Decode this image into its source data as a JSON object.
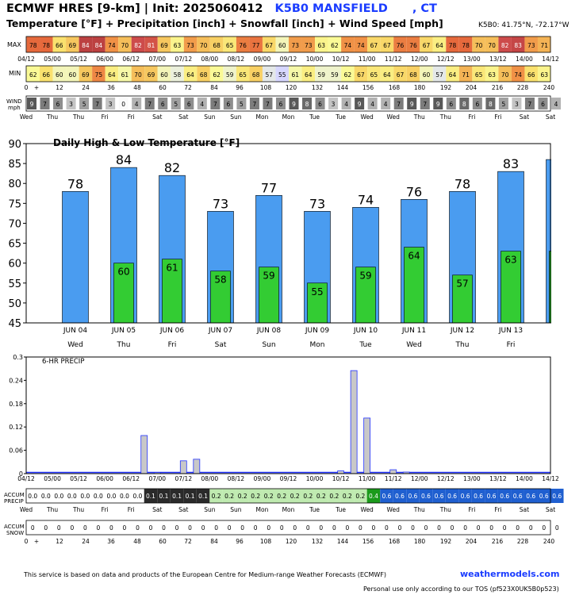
{
  "header": {
    "title_prefix": "ECMWF HRES [9-km] | Init: 2025060412",
    "station": "K5B0 MANSFIELD",
    "state": ", CT",
    "subtitle": "Temperature [°F] + Precipitation [inch] + Snowfall [inch] + Wind Speed [mph]",
    "coords": "K5B0: 41.75°N, -72.17°W"
  },
  "strip_labels": {
    "max": "MAX",
    "min": "MIN",
    "wind": "WIND",
    "wind_unit": "mph",
    "accum_precip_1": "ACCUM",
    "accum_precip_2": "PRECIP",
    "accum_snow_1": "ACCUM",
    "accum_snow_2": "SNOW"
  },
  "time_axis_top": [
    "04/12",
    "05/00",
    "05/12",
    "06/00",
    "06/12",
    "07/00",
    "07/12",
    "08/00",
    "08/12",
    "09/00",
    "09/12",
    "10/00",
    "10/12",
    "11/00",
    "11/12",
    "12/00",
    "12/12",
    "13/00",
    "13/12",
    "14/00",
    "14/12"
  ],
  "hour_axis": [
    "0",
    "+",
    "12",
    "24",
    "36",
    "48",
    "60",
    "72",
    "84",
    "96",
    "108",
    "120",
    "132",
    "144",
    "156",
    "168",
    "180",
    "192",
    "204",
    "216",
    "228",
    "240"
  ],
  "day_axis": [
    "Wed",
    "Thu",
    "Thu",
    "Fri",
    "Fri",
    "Sat",
    "Sat",
    "Sun",
    "Sun",
    "Mon",
    "Mon",
    "Tue",
    "Tue",
    "Wed",
    "Wed",
    "Thu",
    "Thu",
    "Fri",
    "Fri",
    "Sat",
    "Sat"
  ],
  "max_temps": [
    78,
    78,
    66,
    69,
    84,
    84,
    74,
    70,
    82,
    81,
    69,
    63,
    73,
    70,
    68,
    65,
    76,
    77,
    67,
    60,
    73,
    73,
    63,
    62,
    74,
    74,
    67,
    67,
    76,
    76,
    67,
    64,
    78,
    78,
    70,
    70,
    82,
    83,
    73,
    71
  ],
  "min_temps": [
    62,
    66,
    60,
    60,
    69,
    75,
    64,
    61,
    70,
    69,
    60,
    58,
    64,
    68,
    62,
    59,
    65,
    68,
    57,
    55,
    61,
    64,
    59,
    59,
    62,
    67,
    65,
    64,
    67,
    68,
    60,
    57,
    64,
    71,
    65,
    63,
    70,
    74,
    66,
    63
  ],
  "wind": [
    9,
    7,
    6,
    3,
    5,
    7,
    3,
    0,
    4,
    7,
    6,
    5,
    6,
    4,
    7,
    6,
    5,
    7,
    7,
    6,
    9,
    8,
    6,
    3,
    4,
    9,
    4,
    4,
    7,
    9,
    7,
    9,
    6,
    8,
    6,
    8,
    5,
    3,
    7,
    6,
    4
  ],
  "accum_precip": [
    "0.0",
    "0.0",
    "0.0",
    "0.0",
    "0.0",
    "0.0",
    "0.0",
    "0.0",
    "0.0",
    "0.1",
    "0.1",
    "0.1",
    "0.1",
    "0.1",
    "0.2",
    "0.2",
    "0.2",
    "0.2",
    "0.2",
    "0.2",
    "0.2",
    "0.2",
    "0.2",
    "0.2",
    "0.2",
    "0.2",
    "0.4",
    "0.6",
    "0.6",
    "0.6",
    "0.6",
    "0.6",
    "0.6",
    "0.6",
    "0.6",
    "0.6",
    "0.6",
    "0.6",
    "0.6",
    "0.6",
    "0.6"
  ],
  "accum_snow": [
    "0",
    "0",
    "0",
    "0",
    "0",
    "0",
    "0",
    "0",
    "0",
    "0",
    "0",
    "0",
    "0",
    "0",
    "0",
    "0",
    "0",
    "0",
    "0",
    "0",
    "0",
    "0",
    "0",
    "0",
    "0",
    "0",
    "0",
    "0",
    "0",
    "0",
    "0",
    "0",
    "0",
    "0",
    "0",
    "0",
    "0",
    "0",
    "0",
    "0",
    "0"
  ],
  "chart_data": [
    {
      "type": "bar",
      "title": "Daily High & Low Temperature [°F]",
      "categories": [
        "JUN 04",
        "JUN 05",
        "JUN 06",
        "JUN 07",
        "JUN 08",
        "JUN 09",
        "JUN 10",
        "JUN 11",
        "JUN 12",
        "JUN 13",
        ""
      ],
      "weekdays": [
        "Wed",
        "Thu",
        "Fri",
        "Sat",
        "Sun",
        "Mon",
        "Tue",
        "Wed",
        "Thu",
        "Fri",
        ""
      ],
      "series": [
        {
          "values": [
            78,
            84,
            82,
            73,
            77,
            73,
            74,
            76,
            78,
            83,
            86
          ],
          "color": "#4a9cf0"
        },
        {
          "values": [
            null,
            60,
            61,
            58,
            59,
            55,
            59,
            64,
            57,
            63,
            63
          ],
          "color": "#33cc33"
        }
      ],
      "high_labels": [
        "78",
        "84",
        "82",
        "73",
        "77",
        "73",
        "74",
        "76",
        "78",
        "83",
        ""
      ],
      "low_labels": [
        "",
        "60",
        "61",
        "58",
        "59",
        "55",
        "59",
        "64",
        "57",
        "63",
        ""
      ],
      "yticks": [
        45,
        50,
        55,
        60,
        65,
        70,
        75,
        80,
        85,
        90
      ],
      "ylim": [
        45,
        90
      ],
      "grid": false
    },
    {
      "type": "bar",
      "title": "6-HR PRECIP",
      "x": [
        0,
        6,
        12,
        18,
        24,
        30,
        36,
        42,
        48,
        54,
        60,
        66,
        72,
        78,
        84,
        90,
        96,
        102,
        108,
        114,
        120,
        126,
        132,
        138,
        144,
        150,
        156,
        162,
        168,
        174,
        180,
        186,
        192,
        198,
        204,
        210,
        216,
        222,
        228,
        234,
        240
      ],
      "values": [
        0,
        0,
        0,
        0,
        0,
        0,
        0,
        0,
        0,
        0.098,
        0.003,
        0,
        0.033,
        0.037,
        0,
        0,
        0,
        0,
        0,
        0,
        0,
        0,
        0,
        0,
        0.007,
        0.265,
        0.143,
        0,
        0.01,
        0.004,
        0,
        0,
        0,
        0,
        0,
        0,
        0,
        0,
        0,
        0,
        0
      ],
      "yticks": [
        "0",
        "0.06",
        "0.12",
        "0.18",
        "0.24",
        "0.3"
      ],
      "ylim": [
        0,
        0.3
      ],
      "color": "#c8c8c8"
    }
  ],
  "footer": {
    "credit": "This service is based on data and products of the European Centre for Medium-range Weather Forecasts (ECMWF)",
    "brand": "weathermodels.com",
    "tos": "Personal use only according to our TOS (pf523X0UK5B0p523)"
  },
  "colors": {
    "accent": "#1a3cff",
    "high_bar": "#4a9cf0",
    "low_bar": "#33cc33",
    "precip_bar": "#c8c8c8"
  }
}
